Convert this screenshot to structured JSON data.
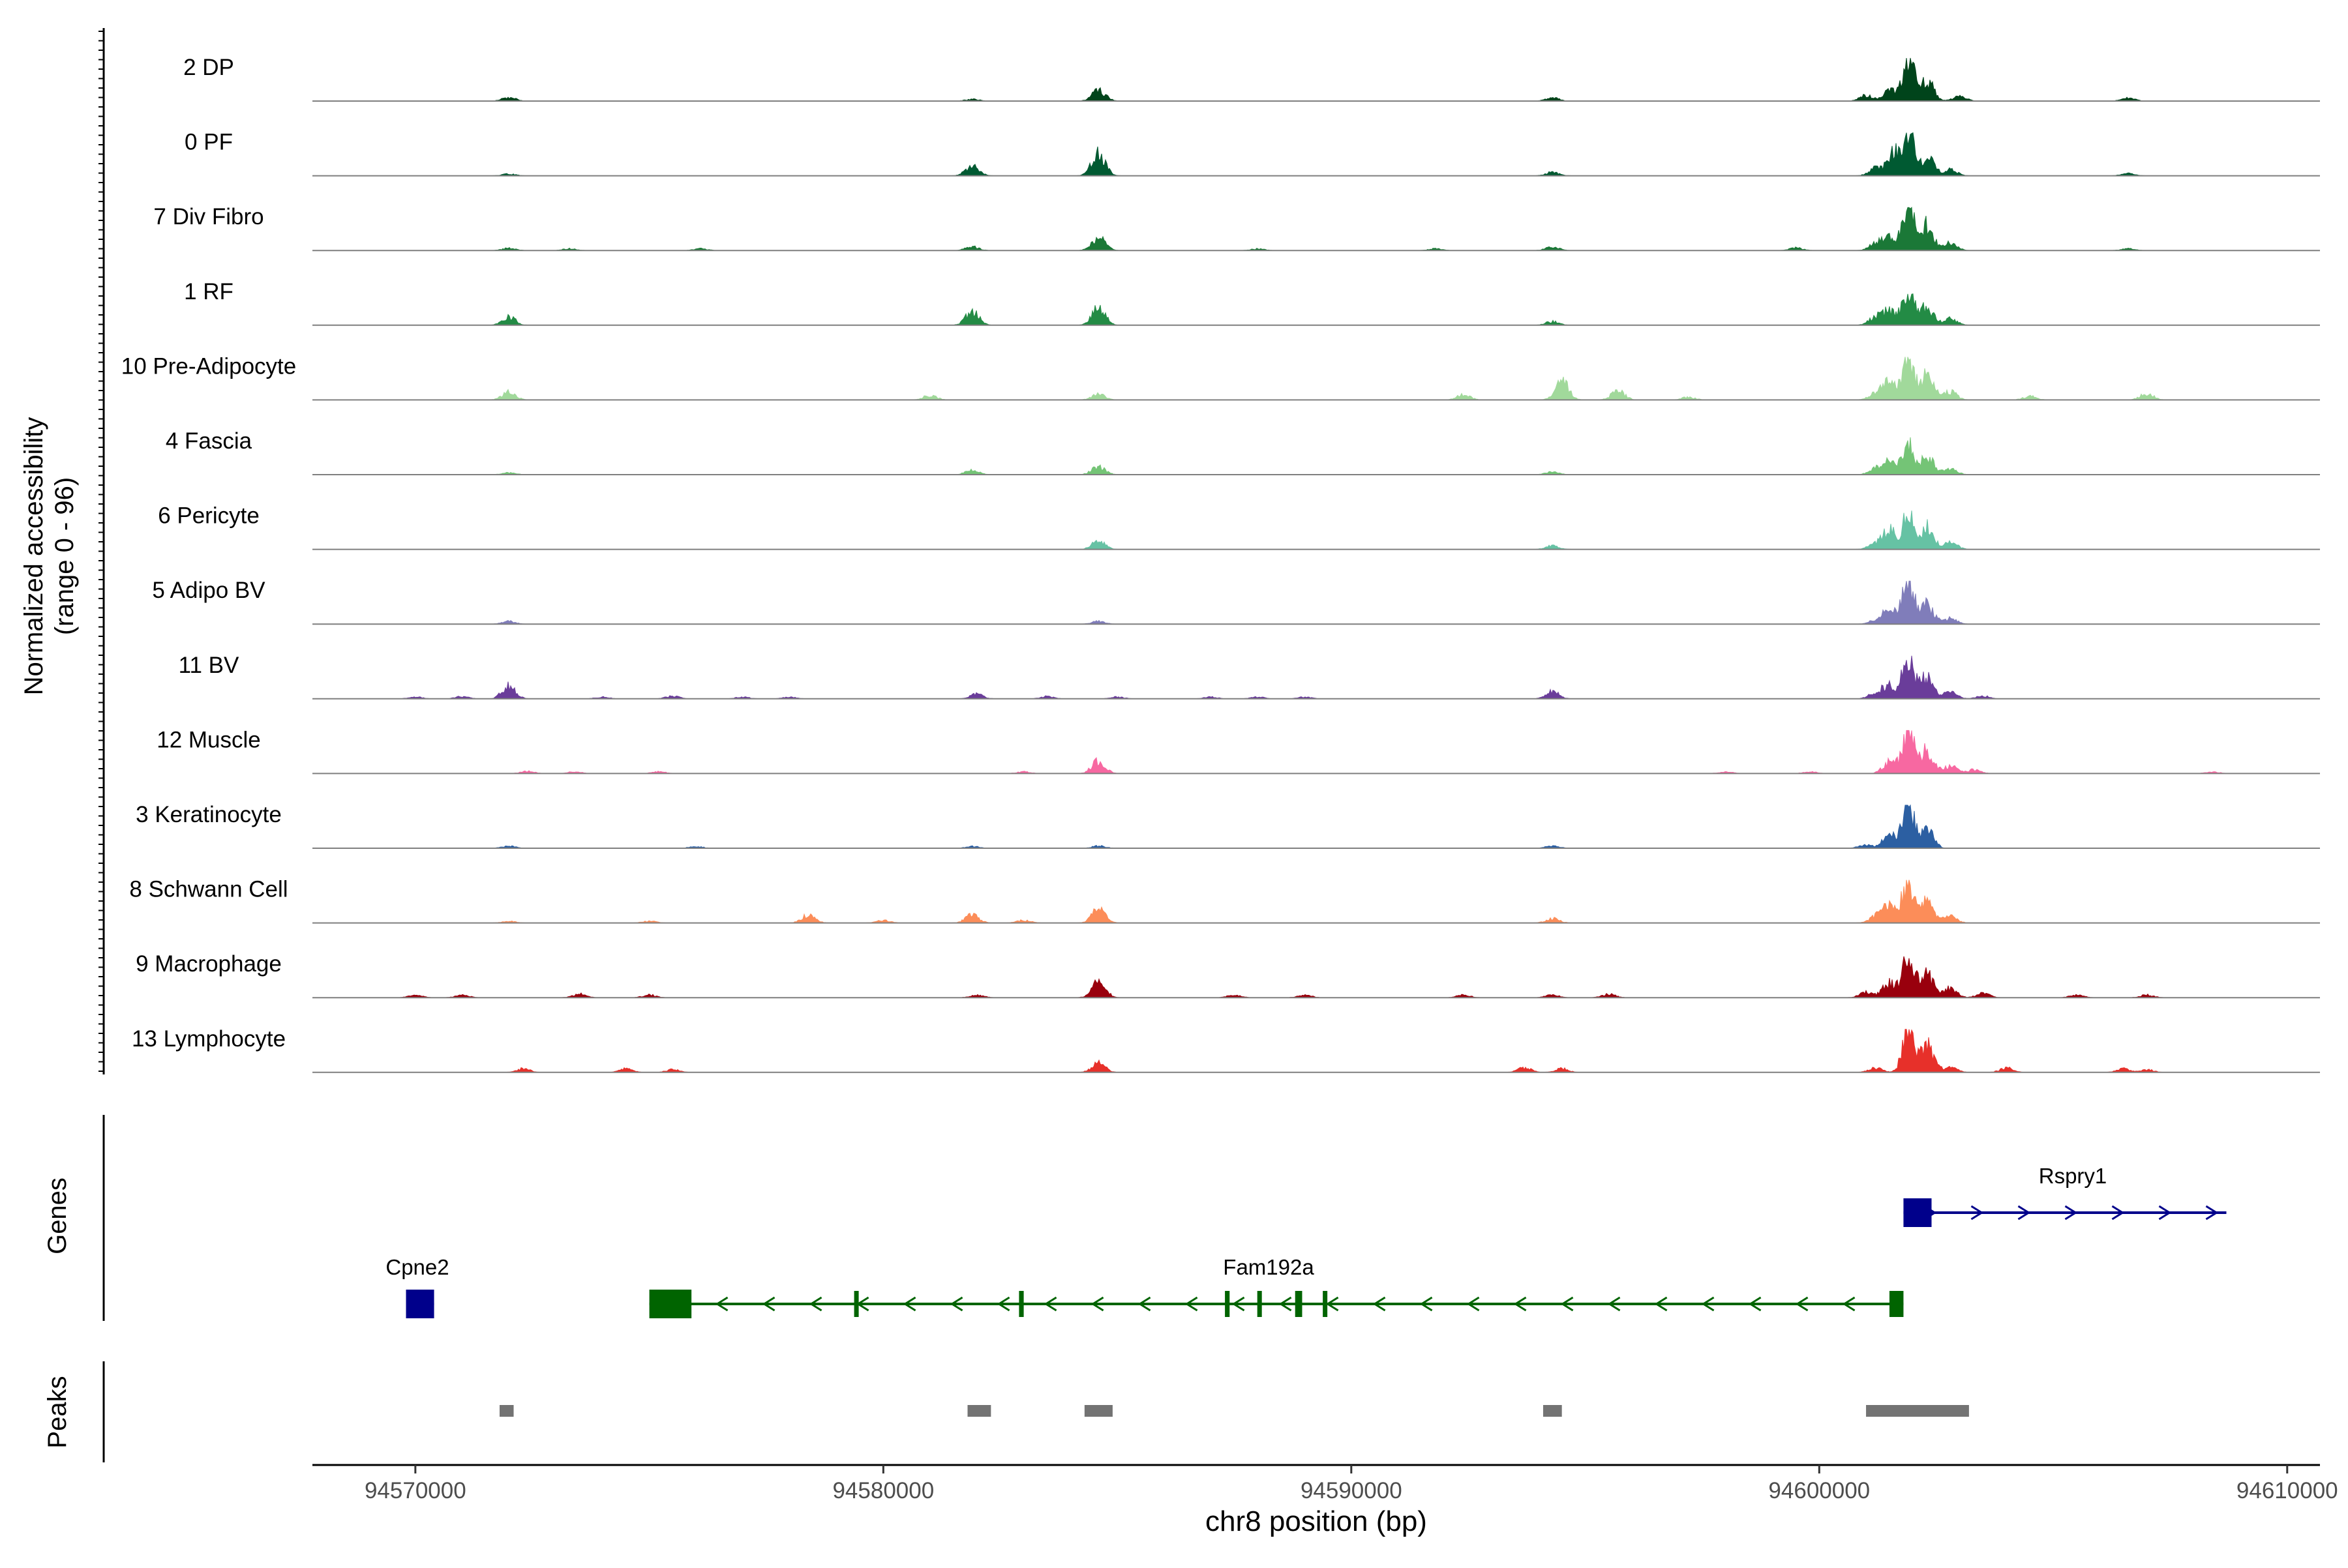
{
  "chart_data": {
    "type": "area",
    "title": "",
    "y_axis_label_line1": "Normalized accessibility",
    "y_axis_label_line2": "(range 0 - 96)",
    "x_axis_label": "chr8 position (bp)",
    "x_range": [
      94567800,
      94610700
    ],
    "y_range": [
      0,
      96
    ],
    "x_ticks": [
      94570000,
      94580000,
      94590000,
      94600000,
      94610000
    ],
    "x_tick_labels": [
      "94570000",
      "94580000",
      "94590000",
      "94600000",
      "94610000"
    ],
    "baseline_color": "#7f7f7f",
    "tracks": [
      {
        "name": "2 DP",
        "color": "#00441b",
        "peaks": [
          [
            94572000,
            8
          ],
          [
            94581900,
            4
          ],
          [
            94584600,
            24
          ],
          [
            94594300,
            7
          ],
          [
            94601000,
            12
          ],
          [
            94601500,
            22
          ],
          [
            94601900,
            96
          ],
          [
            94602300,
            45
          ],
          [
            94603000,
            10
          ],
          [
            94606600,
            7
          ]
        ]
      },
      {
        "name": "0 PF",
        "color": "#005a32",
        "peaks": [
          [
            94572000,
            4
          ],
          [
            94581900,
            22
          ],
          [
            94584600,
            50
          ],
          [
            94594300,
            8
          ],
          [
            94601200,
            16
          ],
          [
            94601600,
            50
          ],
          [
            94601900,
            92
          ],
          [
            94602300,
            42
          ],
          [
            94602800,
            14
          ],
          [
            94606600,
            5
          ]
        ]
      },
      {
        "name": "7 Div Fibro",
        "color": "#1b7837",
        "peaks": [
          [
            94572000,
            5
          ],
          [
            94573300,
            4
          ],
          [
            94576100,
            4
          ],
          [
            94581900,
            8
          ],
          [
            94584600,
            30
          ],
          [
            94588000,
            4
          ],
          [
            94591800,
            4
          ],
          [
            94594300,
            8
          ],
          [
            94599500,
            6
          ],
          [
            94601200,
            14
          ],
          [
            94601500,
            30
          ],
          [
            94601900,
            96
          ],
          [
            94602300,
            56
          ],
          [
            94602800,
            16
          ],
          [
            94606600,
            4
          ]
        ]
      },
      {
        "name": "1 RF",
        "color": "#238b45",
        "peaks": [
          [
            94572000,
            18
          ],
          [
            94581900,
            30
          ],
          [
            94584600,
            38
          ],
          [
            94594300,
            8
          ],
          [
            94601200,
            16
          ],
          [
            94601500,
            30
          ],
          [
            94601900,
            85
          ],
          [
            94602300,
            40
          ],
          [
            94602800,
            14
          ]
        ]
      },
      {
        "name": "10 Pre-Adipocyte",
        "color": "#a1d99b",
        "peaks": [
          [
            94572000,
            18
          ],
          [
            94581000,
            10
          ],
          [
            94584600,
            12
          ],
          [
            94592400,
            12
          ],
          [
            94594500,
            42
          ],
          [
            94595700,
            20
          ],
          [
            94597200,
            6
          ],
          [
            94601200,
            14
          ],
          [
            94601500,
            36
          ],
          [
            94601900,
            96
          ],
          [
            94602300,
            55
          ],
          [
            94602800,
            18
          ],
          [
            94604500,
            8
          ],
          [
            94607000,
            14
          ]
        ]
      },
      {
        "name": "4 Fascia",
        "color": "#74c476",
        "peaks": [
          [
            94572000,
            4
          ],
          [
            94581900,
            10
          ],
          [
            94584600,
            18
          ],
          [
            94594300,
            6
          ],
          [
            94601200,
            12
          ],
          [
            94601500,
            28
          ],
          [
            94601900,
            64
          ],
          [
            94602300,
            40
          ],
          [
            94602800,
            12
          ]
        ]
      },
      {
        "name": "6 Pericyte",
        "color": "#66c2a4",
        "peaks": [
          [
            94584600,
            18
          ],
          [
            94594300,
            8
          ],
          [
            94601200,
            12
          ],
          [
            94601500,
            40
          ],
          [
            94601900,
            78
          ],
          [
            94602300,
            48
          ],
          [
            94602800,
            16
          ]
        ]
      },
      {
        "name": "5 Adipo BV",
        "color": "#807dba",
        "peaks": [
          [
            94572000,
            6
          ],
          [
            94584600,
            6
          ],
          [
            94601200,
            8
          ],
          [
            94601500,
            30
          ],
          [
            94601900,
            96
          ],
          [
            94602300,
            42
          ],
          [
            94602800,
            12
          ]
        ]
      },
      {
        "name": "11 BV",
        "color": "#6a3d9a",
        "peaks": [
          [
            94570000,
            4
          ],
          [
            94571000,
            5
          ],
          [
            94572000,
            30
          ],
          [
            94574000,
            4
          ],
          [
            94575500,
            6
          ],
          [
            94577000,
            4
          ],
          [
            94578000,
            4
          ],
          [
            94582000,
            10
          ],
          [
            94583500,
            5
          ],
          [
            94585000,
            4
          ],
          [
            94587000,
            4
          ],
          [
            94588000,
            4
          ],
          [
            94589000,
            4
          ],
          [
            94594300,
            16
          ],
          [
            94601200,
            12
          ],
          [
            94601500,
            30
          ],
          [
            94601900,
            96
          ],
          [
            94602300,
            48
          ],
          [
            94602800,
            14
          ],
          [
            94603500,
            6
          ]
        ]
      },
      {
        "name": "12 Muscle",
        "color": "#f768a1",
        "peaks": [
          [
            94572400,
            5
          ],
          [
            94573400,
            4
          ],
          [
            94575200,
            4
          ],
          [
            94583000,
            4
          ],
          [
            94584600,
            28
          ],
          [
            94598000,
            4
          ],
          [
            94599800,
            4
          ],
          [
            94601500,
            25
          ],
          [
            94601900,
            96
          ],
          [
            94602300,
            50
          ],
          [
            94602800,
            16
          ],
          [
            94603300,
            8
          ],
          [
            94608400,
            4
          ]
        ]
      },
      {
        "name": "3 Keratinocyte",
        "color": "#2c5fa2",
        "peaks": [
          [
            94572000,
            5
          ],
          [
            94576000,
            4
          ],
          [
            94581900,
            4
          ],
          [
            94584600,
            5
          ],
          [
            94594300,
            6
          ],
          [
            94601000,
            8
          ],
          [
            94601500,
            28
          ],
          [
            94601900,
            96
          ],
          [
            94602300,
            40
          ]
        ]
      },
      {
        "name": "8 Schwann Cell",
        "color": "#fc8d59",
        "peaks": [
          [
            94572000,
            4
          ],
          [
            94575000,
            4
          ],
          [
            94578400,
            18
          ],
          [
            94580000,
            6
          ],
          [
            94581900,
            18
          ],
          [
            94583000,
            6
          ],
          [
            94584600,
            32
          ],
          [
            94594300,
            10
          ],
          [
            94601200,
            14
          ],
          [
            94601500,
            36
          ],
          [
            94601900,
            96
          ],
          [
            94602300,
            46
          ],
          [
            94602800,
            14
          ]
        ]
      },
      {
        "name": "9 Macrophage",
        "color": "#99000d",
        "peaks": [
          [
            94570000,
            6
          ],
          [
            94571000,
            6
          ],
          [
            94573500,
            8
          ],
          [
            94575000,
            6
          ],
          [
            94582000,
            6
          ],
          [
            94584600,
            40
          ],
          [
            94587500,
            6
          ],
          [
            94589000,
            6
          ],
          [
            94592400,
            6
          ],
          [
            94594300,
            6
          ],
          [
            94595500,
            8
          ],
          [
            94601000,
            12
          ],
          [
            94601500,
            32
          ],
          [
            94601900,
            96
          ],
          [
            94602300,
            50
          ],
          [
            94602800,
            20
          ],
          [
            94603500,
            10
          ],
          [
            94605500,
            6
          ],
          [
            94607000,
            6
          ]
        ]
      },
      {
        "name": "13 Lymphocyte",
        "color": "#e7302a",
        "peaks": [
          [
            94572300,
            8
          ],
          [
            94574500,
            8
          ],
          [
            94575500,
            6
          ],
          [
            94584600,
            20
          ],
          [
            94593700,
            10
          ],
          [
            94594500,
            8
          ],
          [
            94601200,
            10
          ],
          [
            94601900,
            96
          ],
          [
            94602300,
            60
          ],
          [
            94602800,
            12
          ],
          [
            94604000,
            10
          ],
          [
            94606500,
            8
          ],
          [
            94607000,
            6
          ]
        ]
      }
    ],
    "genes_label": "Genes",
    "genes": [
      {
        "name": "Rspry1",
        "strand": "+",
        "color": "#00008b",
        "start": 94601800,
        "end": 94608700,
        "exons": [
          [
            94601800,
            94602400
          ]
        ]
      },
      {
        "name": "Cpne2",
        "strand": "+",
        "color": "#00008b",
        "start": 94569800,
        "end": 94570400,
        "exons": [
          [
            94569800,
            94570400
          ]
        ]
      },
      {
        "name": "Fam192a",
        "strand": "-",
        "color": "#006400",
        "start": 94575000,
        "end": 94601800,
        "exons": [
          [
            94575000,
            94575900
          ],
          [
            94579400,
            94579450
          ],
          [
            94582900,
            94583000
          ],
          [
            94587300,
            94587400
          ],
          [
            94588000,
            94588080
          ],
          [
            94588800,
            94588950
          ],
          [
            94589400,
            94589480
          ],
          [
            94601500,
            94601800
          ]
        ]
      }
    ],
    "peaks_label": "Peaks",
    "peaks_color": "#737373",
    "peak_regions": [
      [
        94571800,
        94572100
      ],
      [
        94581800,
        94582300
      ],
      [
        94584300,
        94584900
      ],
      [
        94594100,
        94594500
      ],
      [
        94601000,
        94603200
      ]
    ]
  }
}
